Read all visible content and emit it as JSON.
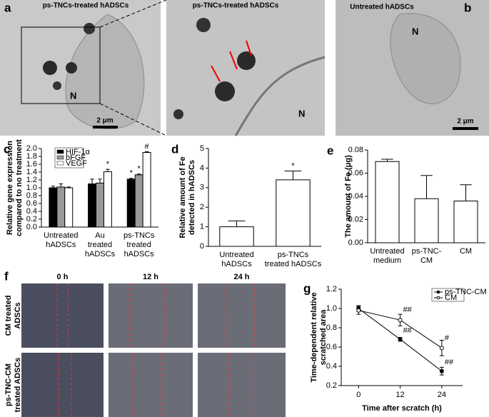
{
  "panels": {
    "a": {
      "label": "a",
      "left_title": "ps-TNCs-treated hADSCs",
      "zoom_title": "ps-TNCs-treated hADSCs",
      "nucleus": "N",
      "zoom_nucleus": "N",
      "scale": "2 μm"
    },
    "b": {
      "label": "b",
      "title": "Untreated hADSCs",
      "nucleus": "N",
      "scale": "2 μm"
    },
    "f": {
      "label": "f",
      "columns": [
        "0 h",
        "12 h",
        "24 h"
      ],
      "rows": [
        [
          "CM treated",
          "ADSCs"
        ],
        [
          "ps-TNC-CM",
          "treated ADSCs"
        ]
      ]
    }
  },
  "chart_data": [
    {
      "type": "bar",
      "label": "c",
      "ylabel": [
        "Relative gene expression",
        "compared to no treatment"
      ],
      "categories": [
        [
          "Untreated",
          "hADSCs"
        ],
        [
          "Au",
          "treated",
          "hADSCs"
        ],
        [
          "ps-TNCs",
          "treated",
          "hADSCs"
        ]
      ],
      "series": [
        {
          "name": "HIF-1α",
          "color": "#000000",
          "values": [
            1.0,
            1.1,
            1.22
          ],
          "errors": [
            0.04,
            0.12,
            0.02
          ],
          "annotations": [
            null,
            null,
            "*"
          ]
        },
        {
          "name": "bFGF",
          "color": "#999999",
          "values": [
            1.02,
            1.12,
            1.33
          ],
          "errors": [
            0.08,
            0.1,
            0.02
          ],
          "annotations": [
            null,
            null,
            "*"
          ]
        },
        {
          "name": "VEGF",
          "color": "#ffffff",
          "values": [
            1.0,
            1.41,
            1.9
          ],
          "errors": [
            0.02,
            0.06,
            0.02
          ],
          "annotations": [
            null,
            "*",
            "#"
          ]
        }
      ],
      "ylim": [
        0,
        2
      ],
      "yticks": [
        {
          "value": 0,
          "label": "0.0"
        },
        {
          "value": 0.2,
          "label": "0.2"
        },
        {
          "value": 0.4,
          "label": "0.4"
        },
        {
          "value": 0.6,
          "label": "0.6"
        },
        {
          "value": 0.8,
          "label": "0.8"
        },
        {
          "value": 1.0,
          "label": "1.0"
        },
        {
          "value": 1.2,
          "label": "1.2"
        },
        {
          "value": 1.4,
          "label": "1.4"
        },
        {
          "value": 1.6,
          "label": "1.6"
        },
        {
          "value": 1.8,
          "label": "1.8"
        },
        {
          "value": 2.0,
          "label": "2.0"
        }
      ],
      "legend": "upper left"
    },
    {
      "type": "bar",
      "label": "d",
      "ylabel": [
        "Relative amount of Fe",
        "detected in hADSCs"
      ],
      "categories": [
        [
          "Untreated",
          "hADSCs"
        ],
        [
          "ps-TNCs",
          "treated hADSCs"
        ]
      ],
      "color": "#ffffff",
      "values": [
        1.0,
        3.4
      ],
      "errors": [
        0.3,
        0.45
      ],
      "annotations": [
        null,
        "*"
      ],
      "ylim": [
        0,
        5
      ],
      "yticks": [
        0,
        1,
        2,
        3,
        4,
        5
      ]
    },
    {
      "type": "bar",
      "label": "e",
      "ylabel": [
        "The amount of Fe (μg)"
      ],
      "categories": [
        [
          "Untreated",
          "medium"
        ],
        [
          "ps-TNC-",
          "CM"
        ],
        [
          "CM"
        ]
      ],
      "color": "#ffffff",
      "values": [
        0.07,
        0.038,
        0.036
      ],
      "errors": [
        0.002,
        0.02,
        0.014
      ],
      "ylim": [
        0,
        0.08
      ],
      "yticks": [
        {
          "value": 0,
          "label": "0.00"
        },
        {
          "value": 0.02,
          "label": "0.02"
        },
        {
          "value": 0.04,
          "label": "0.04"
        },
        {
          "value": 0.06,
          "label": "0.06"
        },
        {
          "value": 0.08,
          "label": "0.08"
        }
      ]
    },
    {
      "type": "line",
      "label": "g",
      "xlabel": "Time after scratch (h)",
      "ylabel": [
        "Time-dependent relative",
        "scratched area"
      ],
      "x": [
        0,
        12,
        24
      ],
      "series": [
        {
          "name": "ps-TNC-CM",
          "color": "#000000",
          "markerfacecolor": "#000000",
          "values": [
            1.0,
            0.68,
            0.35
          ],
          "errors": [
            0.03,
            0.02,
            0.04
          ],
          "annotations": [
            null,
            "##",
            "##"
          ]
        },
        {
          "name": "CM",
          "color": "#000000",
          "markerfacecolor": "#ffffff",
          "values": [
            0.98,
            0.88,
            0.59
          ],
          "errors": [
            0.04,
            0.06,
            0.08
          ],
          "annotations": [
            null,
            "##",
            "#"
          ]
        }
      ],
      "xlim": [
        -5,
        30
      ],
      "xticks": [
        0,
        12,
        24
      ],
      "ylim": [
        0.2,
        1.2
      ],
      "yticks": [
        0.2,
        0.4,
        0.6,
        0.8,
        {
          "value": 1.0,
          "label": "1.0"
        },
        1.2
      ],
      "legend": "upper right"
    }
  ]
}
